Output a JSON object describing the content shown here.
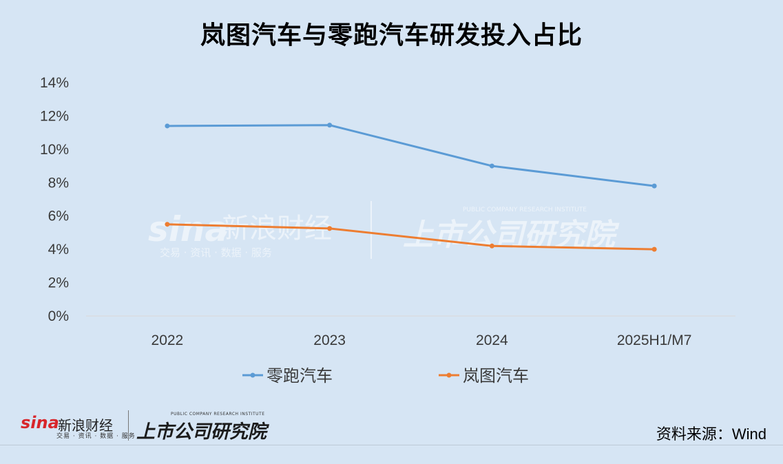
{
  "chart_data": {
    "type": "line",
    "title": "岚图汽车与零跑汽车研发投入占比",
    "categories": [
      "2022",
      "2023",
      "2024",
      "2025H1/M7"
    ],
    "y_ticks": [
      "0%",
      "2%",
      "4%",
      "6%",
      "8%",
      "10%",
      "12%",
      "14%"
    ],
    "ylim": [
      0,
      14
    ],
    "grid": false,
    "legend_position": "bottom",
    "series": [
      {
        "name": "零跑汽车",
        "color": "#5b9bd5",
        "values": [
          11.4,
          11.45,
          9.0,
          7.8
        ]
      },
      {
        "name": "岚图汽车",
        "color": "#ed7d31",
        "values": [
          5.5,
          5.25,
          4.2,
          4.0
        ]
      }
    ]
  },
  "watermark": {
    "left_brand": "新浪财经",
    "left_sub": "交易 · 资讯 · 数据 · 服务",
    "right_brand": "上市公司研究院",
    "right_en": "PUBLIC COMPANY RESEARCH INSTITUTE"
  },
  "footer": {
    "sina_word": "sina",
    "sina_name": "新浪财经",
    "sina_sub": "交易 · 资讯 · 数据 · 服务",
    "institute_en": "PUBLIC COMPANY RESEARCH INSTITUTE",
    "institute_cn": "上市公司研究院",
    "source_label": "资料来源：",
    "source_value": "Wind"
  }
}
